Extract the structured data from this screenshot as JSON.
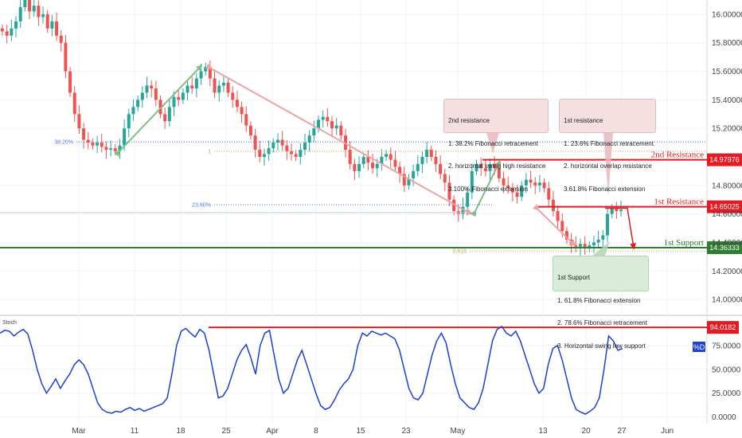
{
  "chart_data": {
    "type": "candlestick",
    "price_axis": {
      "ticks": [
        {
          "value": 16.0,
          "label": "16.00000"
        },
        {
          "value": 15.8,
          "label": "15.80000"
        },
        {
          "value": 15.6,
          "label": "15.60000"
        },
        {
          "value": 15.4,
          "label": "15.40000"
        },
        {
          "value": 15.2,
          "label": "15.20000"
        },
        {
          "value": 14.8,
          "label": "14.80000"
        },
        {
          "value": 14.6,
          "label": "14.60000"
        },
        {
          "value": 14.4,
          "label": "14.40000"
        },
        {
          "value": 14.2,
          "label": "14.20000"
        },
        {
          "value": 14.0,
          "label": "14.00000"
        }
      ],
      "range": [
        13.9,
        16.1
      ]
    },
    "date_axis": {
      "ticks": [
        "Mar",
        "11",
        "18",
        "25",
        "Apr",
        "8",
        "15",
        "23",
        "May",
        "13",
        "20",
        "27",
        "Jun"
      ]
    },
    "levels": [
      {
        "name": "2nd Resistance",
        "value": 14.97976,
        "label": "14.97976",
        "color": "#e31b23"
      },
      {
        "name": "1st Resistance",
        "value": 14.65025,
        "label": "14.65025",
        "color": "#e31b23"
      },
      {
        "name": "1st Support",
        "value": 14.36333,
        "label": "14.36333",
        "color": "#2e7d32"
      }
    ],
    "fib_labels": [
      {
        "label": "38.20%",
        "value": 15.105,
        "color": "#4a7bd0"
      },
      {
        "label": "1",
        "value": 15.04,
        "color": "#c8a04a"
      },
      {
        "label": "23.60%",
        "value": 14.665,
        "color": "#4a7bd0"
      },
      {
        "label": "0.618",
        "value": 14.34,
        "color": "#c8a04a"
      }
    ],
    "price_series": [
      15.88,
      15.85,
      15.9,
      15.95,
      16.05,
      16.1,
      16.02,
      16.06,
      15.98,
      16.0,
      15.9,
      15.95,
      15.85,
      15.8,
      15.6,
      15.45,
      15.3,
      15.2,
      15.12,
      15.1,
      15.08,
      15.1,
      15.07,
      15.05,
      15.06,
      15.04,
      15.08,
      15.2,
      15.3,
      15.35,
      15.4,
      15.45,
      15.5,
      15.48,
      15.4,
      15.3,
      15.25,
      15.35,
      15.42,
      15.4,
      15.45,
      15.5,
      15.48,
      15.55,
      15.6,
      15.63,
      15.55,
      15.45,
      15.5,
      15.52,
      15.45,
      15.4,
      15.35,
      15.3,
      15.22,
      15.15,
      15.05,
      15.0,
      15.02,
      15.06,
      15.1,
      15.12,
      15.08,
      15.04,
      15.02,
      15.0,
      15.05,
      15.1,
      15.15,
      15.2,
      15.26,
      15.28,
      15.25,
      15.2,
      15.22,
      15.15,
      15.05,
      14.95,
      14.9,
      14.95,
      15.0,
      14.96,
      14.92,
      14.95,
      15.0,
      15.02,
      14.98,
      14.93,
      14.88,
      14.8,
      14.85,
      14.9,
      14.95,
      15.0,
      15.05,
      15.0,
      14.95,
      14.88,
      14.82,
      14.7,
      14.62,
      14.6,
      14.65,
      14.75,
      14.9,
      14.95,
      14.92,
      14.9,
      14.95,
      14.92,
      14.85,
      14.8,
      14.78,
      14.75,
      14.72,
      14.8,
      14.84,
      14.82,
      14.8,
      14.82,
      14.78,
      14.7,
      14.62,
      14.55,
      14.48,
      14.42,
      14.38,
      14.37,
      14.39,
      14.36,
      14.38,
      14.4,
      14.42,
      14.45,
      14.6,
      14.64,
      14.62,
      14.63
    ],
    "stochastic": {
      "label": "Stoch",
      "ticks": [
        {
          "value": 75,
          "label": "75.0000"
        },
        {
          "value": 50,
          "label": "50.0000"
        },
        {
          "value": 25,
          "label": "25.0000"
        },
        {
          "value": 0,
          "label": "0.0000"
        }
      ],
      "range": [
        -7,
        105
      ],
      "level": {
        "value": 94.0182,
        "label": "94.0182",
        "color": "#e31b23"
      },
      "legend": "%D",
      "values": [
        88,
        91,
        90,
        85,
        89,
        92,
        87,
        70,
        50,
        35,
        25,
        32,
        40,
        30,
        38,
        45,
        55,
        60,
        55,
        45,
        30,
        15,
        8,
        5,
        4,
        6,
        5,
        8,
        10,
        7,
        9,
        6,
        8,
        10,
        12,
        14,
        20,
        45,
        75,
        90,
        93,
        88,
        84,
        92,
        88,
        70,
        45,
        20,
        22,
        30,
        45,
        60,
        70,
        76,
        62,
        45,
        75,
        88,
        91,
        65,
        40,
        25,
        30,
        45,
        60,
        70,
        55,
        40,
        25,
        12,
        8,
        10,
        18,
        28,
        35,
        40,
        50,
        75,
        88,
        85,
        90,
        88,
        86,
        88,
        85,
        82,
        70,
        50,
        30,
        20,
        18,
        25,
        45,
        65,
        80,
        88,
        78,
        55,
        35,
        20,
        15,
        10,
        8,
        15,
        30,
        55,
        80,
        92,
        95,
        88,
        85,
        90,
        80,
        65,
        50,
        35,
        25,
        30,
        55,
        72,
        75,
        60,
        40,
        20,
        8,
        5,
        3,
        6,
        10,
        20,
        50,
        85,
        80,
        70,
        72
      ]
    }
  },
  "notes": {
    "second_resistance": {
      "title": "2nd resistance",
      "lines": [
        "1. 38.2% Fibonacci retracement",
        "2. horizontal swing high resistance",
        "3.100% Fibonacci extension"
      ]
    },
    "first_resistance": {
      "title": "1st resistance",
      "lines": [
        "1. 23.6% Fibonacci retracement",
        "2. horizontal overlap resistance",
        "3.61.8% Fibonacci extension"
      ]
    },
    "first_support": {
      "title": "1st Support",
      "lines": [
        "1. 61.8% Fibonacci extension",
        "2. 78.6% Fibonacci retracement",
        "3. Horizontal swing low support"
      ]
    }
  },
  "colors": {
    "candle_up": "#26a69a",
    "candle_down": "#ef5350",
    "stoch_line": "#1c3fd1",
    "axis_text": "#444444",
    "grid": "#f0f3fa",
    "arrow_up": "#7fbf83",
    "arrow_down": "#eda3a6",
    "legend_badge": "#1c3fd1"
  }
}
